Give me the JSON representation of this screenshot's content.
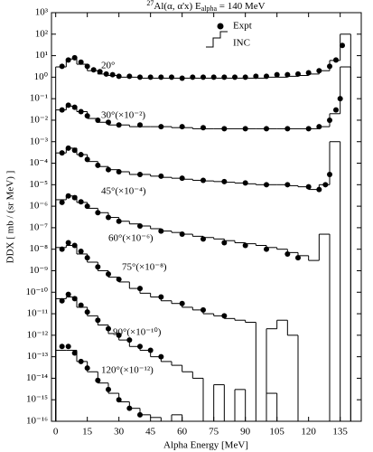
{
  "chart_data": {
    "type": "histogram",
    "title": [
      "27",
      "Al(α, α'x) E",
      "alpha",
      " = 140 MeV"
    ],
    "x_label": "Alpha Energy [MeV]",
    "y_label": "DDX [ mb / (sr MeV) ]",
    "xlim": [
      -2,
      145
    ],
    "xticks": [
      0,
      15,
      30,
      45,
      60,
      75,
      90,
      105,
      120,
      135
    ],
    "ylim": [
      1e-16,
      1000
    ],
    "log_y": true,
    "yticks": [
      {
        "value": 1000,
        "label": "10³"
      },
      {
        "value": 100,
        "label": "10²"
      },
      {
        "value": 10,
        "label": "10¹"
      },
      {
        "value": 1,
        "label": "10⁰"
      },
      {
        "value": 0.1,
        "label": "10⁻¹"
      },
      {
        "value": 0.01,
        "label": "10⁻²"
      },
      {
        "value": 0.001,
        "label": "10⁻³"
      },
      {
        "value": 0.0001,
        "label": "10⁻⁴"
      },
      {
        "value": 1e-05,
        "label": "10⁻⁵"
      },
      {
        "value": 1e-06,
        "label": "10⁻⁶"
      },
      {
        "value": 1e-07,
        "label": "10⁻⁷"
      },
      {
        "value": 1e-08,
        "label": "10⁻⁸"
      },
      {
        "value": 1e-09,
        "label": "10⁻⁹"
      },
      {
        "value": 1e-10,
        "label": "10⁻¹⁰"
      },
      {
        "value": 1e-11,
        "label": "10⁻¹¹"
      },
      {
        "value": 1e-12,
        "label": "10⁻¹²"
      },
      {
        "value": 1e-13,
        "label": "10⁻¹³"
      },
      {
        "value": 1e-14,
        "label": "10⁻¹⁴"
      },
      {
        "value": 1e-15,
        "label": "10⁻¹⁵"
      },
      {
        "value": 1e-16,
        "label": "10⁻¹⁶"
      }
    ],
    "legend": "top",
    "annotations": [
      "20°",
      "30°(×10⁻²)",
      "45°(×10⁻⁴)",
      "60°(×10⁻⁶)",
      "75°(×10⁻⁸)",
      "90°(×10⁻¹⁰)",
      "120°(×10⁻¹²)"
    ],
    "series": [
      {
        "name": "Expt",
        "marker": "circle",
        "color": "#000000",
        "groups": [
          {
            "x": [
              3,
              6,
              9,
              12,
              15,
              18,
              21,
              24,
              27,
              30,
              35,
              40,
              45,
              50,
              55,
              60,
              65,
              70,
              75,
              80,
              85,
              90,
              95,
              100,
              105,
              110,
              115,
              120,
              125,
              130,
              133,
              136
            ],
            "values": [
              3.2,
              6.3,
              8,
              5,
              3.2,
              2.2,
              1.8,
              1.4,
              1.3,
              1.1,
              1.1,
              1,
              1,
              1,
              1,
              0.9,
              1,
              1,
              1,
              1,
              1,
              1,
              1.1,
              1.1,
              1.3,
              1.3,
              1.4,
              1.6,
              2,
              3.2,
              6.3,
              30
            ]
          },
          {
            "x": [
              3,
              6,
              9,
              12,
              15,
              20,
              25,
              30,
              40,
              50,
              60,
              70,
              80,
              90,
              100,
              110,
              120,
              125,
              130,
              133,
              135
            ],
            "values": [
              0.03,
              0.05,
              0.04,
              0.025,
              0.016,
              0.01,
              0.008,
              0.006,
              0.006,
              0.005,
              0.005,
              0.0045,
              0.004,
              0.004,
              0.004,
              0.004,
              0.004,
              0.005,
              0.01,
              0.03,
              0.1
            ]
          },
          {
            "x": [
              3,
              6,
              9,
              12,
              15,
              20,
              25,
              30,
              40,
              50,
              60,
              70,
              80,
              90,
              100,
              110,
              120,
              125,
              128,
              130
            ],
            "values": [
              0.0003,
              0.0005,
              0.0004,
              0.00025,
              0.00015,
              8e-05,
              5e-05,
              4e-05,
              3e-05,
              2.5e-05,
              2e-05,
              1.6e-05,
              1.4e-05,
              1.2e-05,
              1e-05,
              1e-05,
              8e-06,
              6e-06,
              1e-05,
              3e-05
            ]
          },
          {
            "x": [
              3,
              6,
              9,
              12,
              15,
              20,
              25,
              30,
              40,
              50,
              60,
              70,
              80,
              90,
              100,
              110,
              115
            ],
            "values": [
              1.5e-06,
              3e-06,
              2.5e-06,
              1.6e-06,
              1e-06,
              5e-07,
              3e-07,
              2e-07,
              1.2e-07,
              7e-08,
              5e-08,
              3e-08,
              2e-08,
              1.5e-08,
              1e-08,
              6e-09,
              4e-09
            ]
          },
          {
            "x": [
              3,
              6,
              9,
              12,
              15,
              20,
              25,
              30,
              40,
              50,
              60,
              70,
              80
            ],
            "values": [
              1e-08,
              2e-08,
              1.5e-08,
              8e-09,
              4e-09,
              1.5e-09,
              7e-10,
              4e-10,
              1.5e-10,
              6e-11,
              3e-11,
              1.5e-11,
              8e-12
            ]
          },
          {
            "x": [
              3,
              6,
              9,
              12,
              15,
              20,
              25,
              30,
              35,
              40,
              45,
              50
            ],
            "values": [
              4e-11,
              8e-11,
              5e-11,
              2.5e-11,
              1.2e-11,
              5e-12,
              2e-12,
              1e-12,
              6e-13,
              3e-13,
              2e-13,
              1e-13
            ]
          },
          {
            "x": [
              3,
              6,
              9,
              12,
              15,
              20,
              25,
              30,
              35,
              40
            ],
            "values": [
              3e-13,
              3e-13,
              1.5e-13,
              6e-14,
              3e-14,
              8e-15,
              3e-15,
              1e-15,
              4e-16,
              2e-16
            ]
          }
        ]
      },
      {
        "name": "INC",
        "marker": "step",
        "color": "#000000",
        "bins": [
          0,
          5,
          10,
          15,
          20,
          25,
          30,
          35,
          40,
          45,
          50,
          55,
          60,
          65,
          70,
          75,
          80,
          85,
          90,
          95,
          100,
          105,
          110,
          115,
          120,
          125,
          130,
          135,
          140,
          145
        ],
        "groups": [
          {
            "values": [
              3,
              7,
              4,
              2,
              1.4,
              1.2,
              1,
              1,
              0.9,
              0.9,
              0.9,
              0.9,
              0.9,
              0.9,
              0.9,
              0.9,
              0.9,
              0.9,
              0.9,
              0.9,
              1,
              1,
              1.1,
              1.2,
              1.4,
              2,
              6,
              100,
              null
            ]
          },
          {
            "values": [
              0.03,
              0.045,
              0.025,
              0.012,
              0.008,
              0.006,
              0.006,
              0.005,
              0.005,
              0.005,
              0.005,
              0.0045,
              0.0045,
              0.004,
              0.004,
              0.004,
              0.004,
              0.004,
              0.004,
              0.004,
              0.004,
              0.004,
              0.004,
              0.004,
              0.004,
              0.005,
              0.02,
              3,
              null
            ]
          },
          {
            "values": [
              0.0003,
              0.0005,
              0.00025,
              0.00012,
              7e-05,
              5e-05,
              4e-05,
              3e-05,
              3e-05,
              2.5e-05,
              2.2e-05,
              2e-05,
              1.8e-05,
              1.6e-05,
              1.5e-05,
              1.4e-05,
              1.3e-05,
              1.2e-05,
              1.1e-05,
              1e-05,
              1e-05,
              1e-05,
              9e-06,
              8e-06,
              6e-06,
              1e-05,
              0.001,
              null,
              null
            ]
          },
          {
            "values": [
              2e-06,
              3e-06,
              1.5e-06,
              8e-07,
              5e-07,
              3e-07,
              2e-07,
              1.5e-07,
              1.2e-07,
              9e-08,
              7e-08,
              6e-08,
              5e-08,
              4e-08,
              3.5e-08,
              3e-08,
              2.5e-08,
              2e-08,
              1.8e-08,
              1.5e-08,
              1.2e-08,
              1e-08,
              7e-09,
              5e-09,
              3e-09,
              5e-08,
              null,
              null,
              null
            ]
          },
          {
            "values": [
              1.2e-08,
              1.5e-08,
              6e-09,
              2.5e-09,
              1e-09,
              5e-10,
              3e-10,
              1.5e-10,
              9e-11,
              6e-11,
              4e-11,
              3e-11,
              2e-11,
              1.5e-11,
              1e-11,
              8e-12,
              6e-12,
              5e-12,
              4e-12,
              null,
              2e-12,
              5e-12,
              1e-12,
              null,
              null,
              null,
              null,
              null,
              null
            ]
          },
          {
            "values": [
              5e-11,
              6e-11,
              2e-11,
              8e-12,
              3e-12,
              1.2e-12,
              6e-13,
              3e-13,
              2e-13,
              1e-13,
              6e-14,
              4e-14,
              2e-14,
              1e-14,
              null,
              5e-15,
              null,
              3e-15,
              null,
              null,
              2e-15,
              null,
              null,
              null,
              null,
              null,
              null,
              null,
              null
            ]
          },
          {
            "values": [
              2e-13,
              2e-13,
              6e-14,
              2e-14,
              6e-15,
              2e-15,
              8e-16,
              4e-16,
              2e-16,
              1.5e-16,
              null,
              2e-16,
              null,
              null,
              null,
              null,
              null,
              null,
              null,
              null,
              null,
              null,
              null,
              null,
              null,
              null,
              null,
              null,
              null
            ]
          }
        ]
      }
    ]
  }
}
